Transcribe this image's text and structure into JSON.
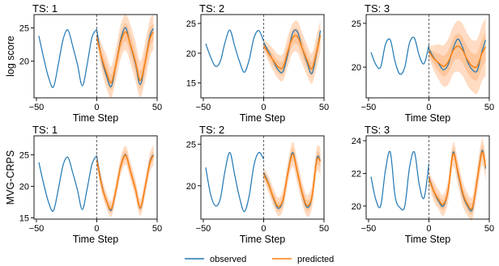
{
  "figure": {
    "legend": {
      "observed": "observed",
      "predicted": "predicted",
      "placement": "bottom-center"
    },
    "colors": {
      "observed": "#1f77b4",
      "predicted": "#ff7f0e",
      "band": "#ffb27a",
      "forecast_start": "#555555"
    }
  },
  "chart_data": [
    {
      "type": "line",
      "row": 0,
      "col": 0,
      "title": "TS: 1",
      "ylabel": "log score",
      "xlabel": "Time Step",
      "xlim": [
        -52,
        50
      ],
      "ylim": [
        14.5,
        27
      ],
      "xticks": [
        -50,
        0,
        50
      ],
      "yticks": [
        20,
        25
      ],
      "forecast_start": 0,
      "observed": {
        "x": [
          -48,
          -44,
          -40,
          -36,
          -32,
          -28,
          -24,
          -20,
          -16,
          -12,
          -8,
          -4,
          0
        ],
        "y": [
          23.8,
          20.5,
          17.6,
          16.1,
          19.4,
          23.2,
          24.7,
          22.3,
          19.5,
          16.3,
          19.5,
          23.6,
          24.8
        ]
      },
      "series": [
        {
          "name": "observed",
          "x": [
            0,
            4,
            8,
            12,
            16,
            20,
            24,
            28,
            32,
            36,
            40,
            44,
            47
          ],
          "y": [
            24.7,
            20.4,
            17.8,
            16.2,
            19.6,
            23.4,
            25.0,
            22.3,
            19.6,
            16.5,
            19.8,
            23.8,
            24.9
          ]
        },
        {
          "name": "predicted",
          "x": [
            0,
            4,
            8,
            12,
            16,
            20,
            24,
            28,
            32,
            36,
            40,
            44,
            47
          ],
          "y": [
            23.6,
            20.6,
            18.3,
            16.8,
            19.6,
            23.0,
            24.4,
            22.4,
            19.9,
            17.1,
            19.8,
            23.4,
            24.4
          ]
        }
      ],
      "band": {
        "x": [
          0,
          4,
          8,
          12,
          16,
          20,
          24,
          28,
          32,
          36,
          40,
          44,
          47
        ],
        "lower": [
          22.8,
          18.6,
          15.9,
          14.6,
          17.2,
          20.5,
          21.6,
          19.6,
          17.0,
          14.6,
          17.0,
          20.6,
          21.8
        ],
        "upper": [
          24.6,
          22.6,
          20.9,
          19.2,
          22.1,
          25.6,
          27.0,
          25.4,
          22.9,
          20.0,
          22.8,
          26.3,
          27.0
        ]
      }
    },
    {
      "type": "line",
      "row": 0,
      "col": 1,
      "title": "TS: 2",
      "ylabel": "",
      "xlabel": "Time Step",
      "xlim": [
        -52,
        50
      ],
      "ylim": [
        12.5,
        26.5
      ],
      "xticks": [
        -50,
        0,
        50
      ],
      "yticks": [
        15,
        20,
        25
      ],
      "forecast_start": 0,
      "observed": {
        "x": [
          -48,
          -44,
          -40,
          -36,
          -32,
          -28,
          -24,
          -20,
          -16,
          -12,
          -8,
          -4,
          0
        ],
        "y": [
          21.6,
          19.4,
          17.8,
          18.6,
          21.8,
          23.9,
          21.2,
          18.6,
          16.8,
          18.9,
          22.6,
          23.8,
          22.0
        ]
      },
      "series": [
        {
          "name": "observed",
          "x": [
            0,
            4,
            8,
            12,
            16,
            20,
            24,
            28,
            32,
            36,
            40,
            44,
            47
          ],
          "y": [
            21.8,
            20.3,
            18.7,
            17.2,
            16.9,
            19.8,
            23.4,
            23.6,
            20.8,
            18.4,
            16.6,
            20.2,
            23.8
          ]
        },
        {
          "name": "predicted",
          "x": [
            0,
            4,
            8,
            12,
            16,
            20,
            24,
            28,
            32,
            36,
            40,
            44,
            47
          ],
          "y": [
            21.3,
            20.0,
            18.8,
            17.7,
            17.6,
            20.3,
            22.6,
            22.8,
            20.8,
            18.8,
            17.4,
            20.4,
            23.0
          ]
        }
      ],
      "band": {
        "x": [
          0,
          4,
          8,
          12,
          16,
          20,
          24,
          28,
          32,
          36,
          40,
          44,
          47
        ],
        "lower": [
          20.4,
          18.6,
          17.0,
          15.7,
          15.4,
          17.8,
          20.0,
          20.1,
          18.2,
          16.2,
          14.9,
          17.7,
          20.2
        ],
        "upper": [
          22.3,
          21.6,
          20.7,
          19.8,
          19.9,
          22.8,
          25.0,
          25.4,
          23.4,
          21.4,
          20.0,
          23.1,
          25.6
        ]
      }
    },
    {
      "type": "line",
      "row": 0,
      "col": 2,
      "title": "TS: 3",
      "ylabel": "",
      "xlabel": "Time Step",
      "xlim": [
        -52,
        50
      ],
      "ylim": [
        16.5,
        26
      ],
      "xticks": [
        -50,
        0,
        50
      ],
      "yticks": [
        20,
        25
      ],
      "forecast_start": 0,
      "observed": {
        "x": [
          -48,
          -44,
          -40,
          -36,
          -32,
          -28,
          -24,
          -20,
          -16,
          -12,
          -8,
          -4,
          0
        ],
        "y": [
          21.7,
          20.3,
          20.0,
          22.6,
          23.1,
          20.6,
          19.2,
          20.0,
          22.8,
          23.3,
          21.3,
          20.4,
          22.5
        ]
      },
      "series": [
        {
          "name": "observed",
          "x": [
            0,
            4,
            8,
            12,
            16,
            20,
            24,
            28,
            32,
            36,
            40,
            44,
            47
          ],
          "y": [
            22.1,
            21.1,
            20.4,
            19.7,
            20.3,
            22.1,
            23.2,
            22.2,
            20.6,
            19.7,
            19.6,
            21.8,
            23.1
          ]
        },
        {
          "name": "predicted",
          "x": [
            0,
            4,
            8,
            12,
            16,
            20,
            24,
            28,
            32,
            36,
            40,
            44,
            47
          ],
          "y": [
            21.8,
            21.0,
            20.5,
            20.1,
            20.6,
            21.9,
            22.4,
            21.9,
            20.8,
            20.1,
            20.1,
            21.6,
            22.3
          ]
        }
      ],
      "band": {
        "x": [
          0,
          4,
          8,
          12,
          16,
          20,
          24,
          28,
          32,
          36,
          40,
          44,
          47
        ],
        "lower": [
          21.1,
          19.6,
          18.6,
          17.8,
          18.0,
          19.2,
          19.5,
          19.0,
          17.9,
          17.2,
          17.0,
          18.4,
          19.0
        ],
        "upper": [
          22.4,
          22.5,
          22.6,
          22.5,
          23.2,
          24.6,
          25.3,
          24.9,
          23.8,
          23.1,
          23.2,
          24.8,
          25.6
        ]
      }
    },
    {
      "type": "line",
      "row": 1,
      "col": 0,
      "title": "TS: 1",
      "ylabel": "MVG-CRPS",
      "xlabel": "Time Step",
      "xlim": [
        -52,
        50
      ],
      "ylim": [
        14.8,
        28
      ],
      "xticks": [
        -50,
        0,
        50
      ],
      "yticks": [
        15,
        20,
        25
      ],
      "forecast_start": 0,
      "observed": {
        "x": [
          -48,
          -44,
          -40,
          -36,
          -32,
          -28,
          -24,
          -20,
          -16,
          -12,
          -8,
          -4,
          0
        ],
        "y": [
          23.8,
          20.4,
          17.5,
          16.1,
          19.4,
          23.3,
          24.6,
          22.2,
          19.4,
          16.3,
          19.6,
          23.5,
          24.9
        ]
      },
      "series": [
        {
          "name": "observed",
          "x": [
            0,
            4,
            8,
            12,
            16,
            20,
            24,
            28,
            32,
            36,
            40,
            44,
            47
          ],
          "y": [
            24.7,
            20.4,
            17.7,
            16.2,
            19.5,
            23.4,
            25.0,
            22.3,
            19.6,
            16.5,
            19.8,
            23.9,
            25.0
          ]
        },
        {
          "name": "predicted",
          "x": [
            0,
            4,
            8,
            12,
            16,
            20,
            24,
            28,
            32,
            36,
            40,
            44,
            47
          ],
          "y": [
            24.2,
            20.2,
            17.7,
            16.4,
            19.5,
            23.3,
            24.9,
            22.3,
            19.6,
            16.6,
            19.8,
            23.7,
            24.9
          ]
        }
      ],
      "band": {
        "x": [
          0,
          4,
          8,
          12,
          16,
          20,
          24,
          28,
          32,
          36,
          40,
          44,
          47
        ],
        "lower": [
          23.2,
          19.0,
          16.5,
          15.2,
          18.2,
          21.9,
          23.4,
          20.9,
          18.2,
          15.3,
          18.4,
          22.2,
          23.4
        ],
        "upper": [
          25.3,
          21.6,
          19.0,
          17.7,
          20.9,
          24.8,
          26.4,
          23.8,
          21.1,
          18.0,
          21.2,
          25.3,
          26.5
        ]
      }
    },
    {
      "type": "line",
      "row": 1,
      "col": 1,
      "title": "TS: 2",
      "ylabel": "",
      "xlabel": "Time Step",
      "xlim": [
        -52,
        50
      ],
      "ylim": [
        16,
        26
      ],
      "xticks": [
        -50,
        0,
        50
      ],
      "yticks": [
        20,
        25
      ],
      "forecast_start": 0,
      "observed": {
        "x": [
          -48,
          -44,
          -40,
          -36,
          -32,
          -28,
          -24,
          -20,
          -16,
          -12,
          -8,
          -4,
          0
        ],
        "y": [
          22.2,
          19.0,
          17.6,
          18.4,
          21.8,
          24.0,
          21.3,
          18.6,
          16.9,
          18.8,
          22.5,
          24.0,
          23.2
        ]
      },
      "series": [
        {
          "name": "observed",
          "x": [
            0,
            4,
            8,
            12,
            16,
            20,
            24,
            28,
            32,
            36,
            40,
            44,
            47
          ],
          "y": [
            21.6,
            20.3,
            18.5,
            17.3,
            18.2,
            21.6,
            24.0,
            21.6,
            19.0,
            17.4,
            18.6,
            23.3,
            23.0
          ]
        },
        {
          "name": "predicted",
          "x": [
            0,
            4,
            8,
            12,
            16,
            20,
            24,
            28,
            32,
            36,
            40,
            44,
            47
          ],
          "y": [
            21.4,
            20.2,
            18.6,
            17.5,
            18.3,
            21.5,
            23.8,
            21.6,
            19.1,
            17.6,
            18.7,
            23.1,
            22.9
          ]
        }
      ],
      "band": {
        "x": [
          0,
          4,
          8,
          12,
          16,
          20,
          24,
          28,
          32,
          36,
          40,
          44,
          47
        ],
        "lower": [
          20.7,
          19.2,
          17.6,
          16.4,
          17.1,
          20.2,
          22.3,
          20.2,
          17.8,
          16.3,
          17.3,
          21.6,
          21.3
        ],
        "upper": [
          22.1,
          21.2,
          19.7,
          18.6,
          19.5,
          22.8,
          25.3,
          23.0,
          20.4,
          18.9,
          20.1,
          24.6,
          24.5
        ]
      }
    },
    {
      "type": "line",
      "row": 1,
      "col": 2,
      "title": "TS: 3",
      "ylabel": "",
      "xlabel": "Time Step",
      "xlim": [
        -52,
        50
      ],
      "ylim": [
        19.2,
        24.3
      ],
      "xticks": [
        -50,
        0,
        50
      ],
      "yticks": [
        20,
        22,
        24
      ],
      "forecast_start": 0,
      "observed": {
        "x": [
          -48,
          -44,
          -40,
          -36,
          -32,
          -28,
          -24,
          -20,
          -16,
          -12,
          -8,
          -4,
          0
        ],
        "y": [
          21.8,
          20.4,
          20.0,
          22.2,
          23.3,
          20.6,
          19.9,
          20.0,
          22.4,
          23.3,
          21.3,
          20.5,
          22.6
        ]
      },
      "series": [
        {
          "name": "observed",
          "x": [
            0,
            4,
            8,
            12,
            16,
            20,
            24,
            28,
            32,
            36,
            40,
            44,
            47
          ],
          "y": [
            21.8,
            20.9,
            20.3,
            20.0,
            21.0,
            23.3,
            22.0,
            20.7,
            20.0,
            19.8,
            21.6,
            23.4,
            22.3
          ]
        },
        {
          "name": "predicted",
          "x": [
            0,
            4,
            8,
            12,
            16,
            20,
            24,
            28,
            32,
            36,
            40,
            44,
            47
          ],
          "y": [
            21.7,
            20.9,
            20.4,
            20.1,
            21.0,
            23.2,
            22.1,
            20.8,
            20.1,
            19.9,
            21.6,
            23.3,
            22.4
          ]
        }
      ],
      "band": {
        "x": [
          0,
          4,
          8,
          12,
          16,
          20,
          24,
          28,
          32,
          36,
          40,
          44,
          47
        ],
        "lower": [
          21.3,
          20.3,
          19.8,
          19.4,
          20.3,
          22.4,
          21.3,
          20.0,
          19.4,
          19.2,
          20.8,
          22.5,
          21.6
        ],
        "upper": [
          22.1,
          21.5,
          21.0,
          20.7,
          21.7,
          23.9,
          22.8,
          21.5,
          20.8,
          20.6,
          22.4,
          24.1,
          23.1
        ]
      }
    }
  ]
}
